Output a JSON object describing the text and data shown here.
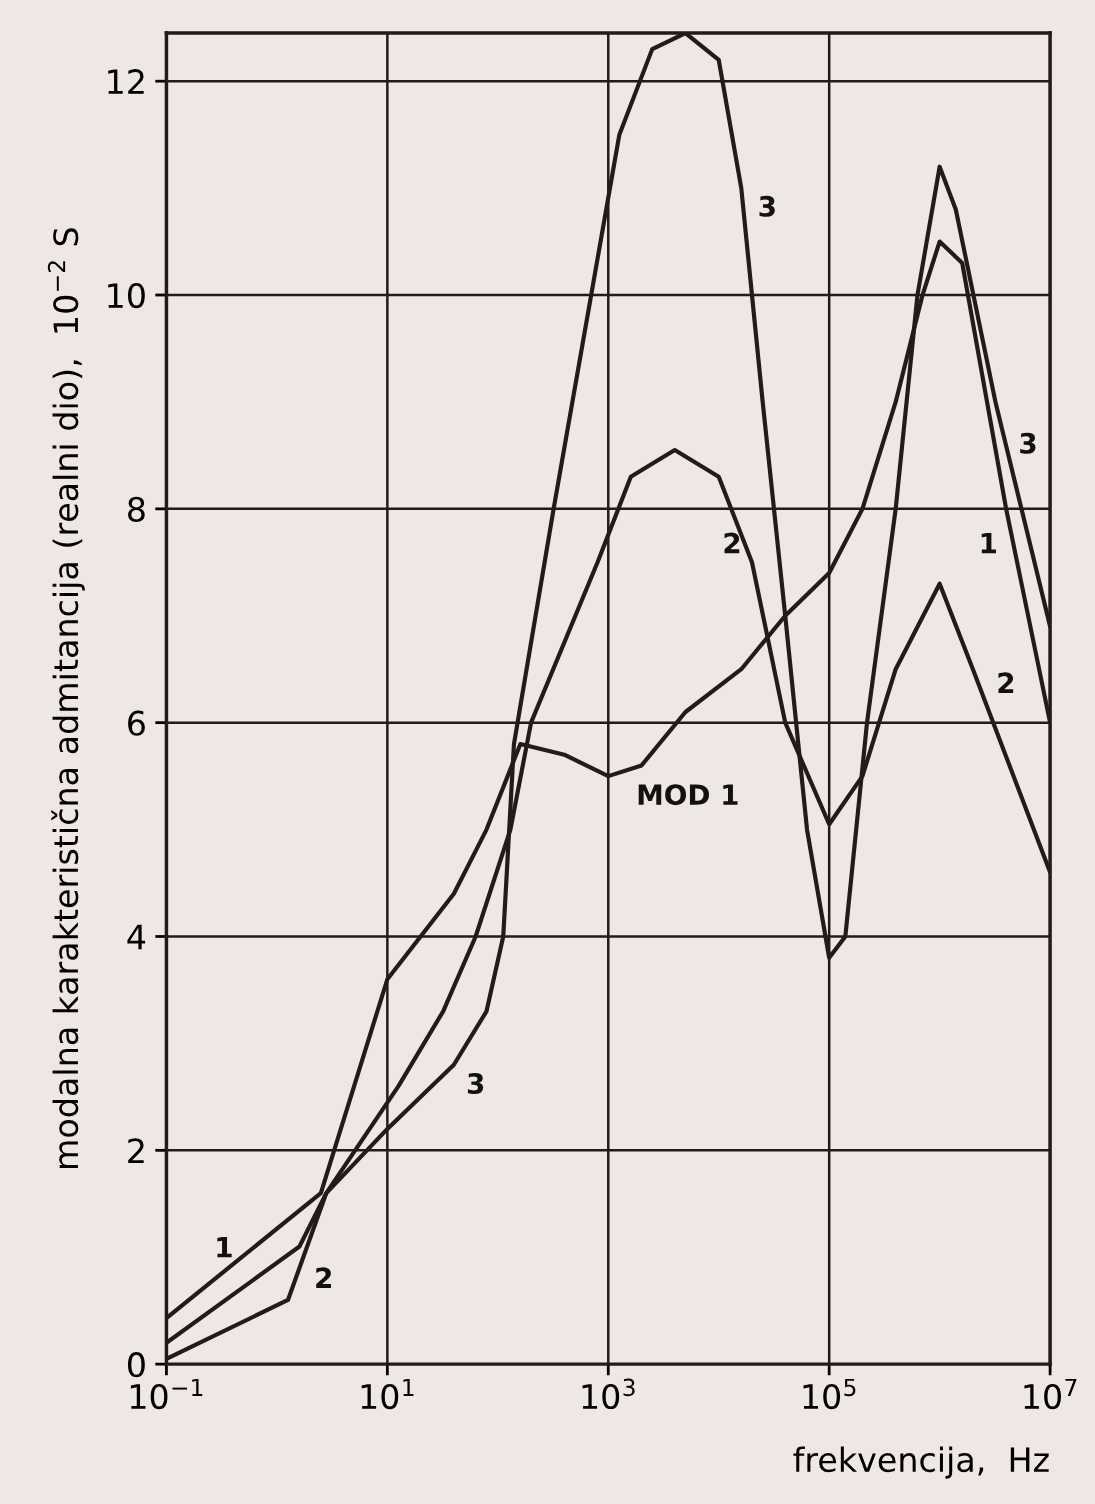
{
  "chart_data": {
    "type": "line",
    "xlabel": "frekvencija,  Hz",
    "ylabel": "modalna karakteristična admitancija (realni dio),  10$^{−2}$ S",
    "log": "x",
    "grid": true,
    "line_style": "solid",
    "marker": "none",
    "xlim": [
      0.1,
      10000000
    ],
    "ylim": [
      0,
      12.45
    ],
    "xticks": [
      {
        "value": 0.1,
        "label": "10$^{−1}$"
      },
      {
        "value": 10,
        "label": "10$^{1}$"
      },
      {
        "value": 1000,
        "label": "10$^{3}$"
      },
      {
        "value": 100000,
        "label": "10$^{5}$"
      },
      {
        "value": 10000000,
        "label": "10$^{7}$"
      }
    ],
    "yticks": [
      0,
      2,
      4,
      6,
      8,
      10,
      12
    ],
    "series": [
      {
        "color": "#231a1a",
        "x": [
          0.1,
          2.5,
          10,
          40,
          79,
          160,
          400,
          1000,
          2000,
          5000,
          16000,
          40000,
          100000,
          200000,
          400000,
          700000,
          1000000,
          1600000,
          4000000,
          10000000
        ],
        "values": [
          0.43,
          1.6,
          3.6,
          4.4,
          5.0,
          5.8,
          5.7,
          5.5,
          5.6,
          6.1,
          6.5,
          7.0,
          7.4,
          8.0,
          9.0,
          10.0,
          10.5,
          10.3,
          8.0,
          6.0
        ]
      },
      {
        "color": "#231a1a",
        "x": [
          0.1,
          1.6,
          2.8,
          12.6,
          32,
          63,
          130,
          200,
          800,
          1600,
          4000,
          10000,
          20000,
          40000,
          100000,
          200000,
          400000,
          1000000,
          2000000,
          10000000
        ],
        "values": [
          0.2,
          1.1,
          1.6,
          2.6,
          3.3,
          4.0,
          5.0,
          6.0,
          7.5,
          8.3,
          8.55,
          8.3,
          7.5,
          6.0,
          5.05,
          5.5,
          6.5,
          7.3,
          6.5,
          4.6
        ]
      },
      {
        "color": "#231a1a",
        "x": [
          0.1,
          1.26,
          2.8,
          10,
          40,
          79,
          112,
          140,
          320,
          700,
          1260,
          2500,
          5000,
          10000,
          16000,
          25000,
          40000,
          63000,
          100000,
          140000,
          220000,
          400000,
          630000,
          1000000,
          1400000,
          3200000,
          10000000
        ],
        "values": [
          0.05,
          0.6,
          1.6,
          2.2,
          2.8,
          3.3,
          4.0,
          5.8,
          8.0,
          10.0,
          11.5,
          12.3,
          12.45,
          12.2,
          11.0,
          9.0,
          7.0,
          5.0,
          3.8,
          4.0,
          6.0,
          8.0,
          10.0,
          11.2,
          10.8,
          9.0,
          6.9
        ]
      }
    ],
    "annotations": [
      "1",
      "2",
      "3",
      "MOD 1",
      "3",
      "2",
      "3",
      "1",
      "2"
    ]
  }
}
